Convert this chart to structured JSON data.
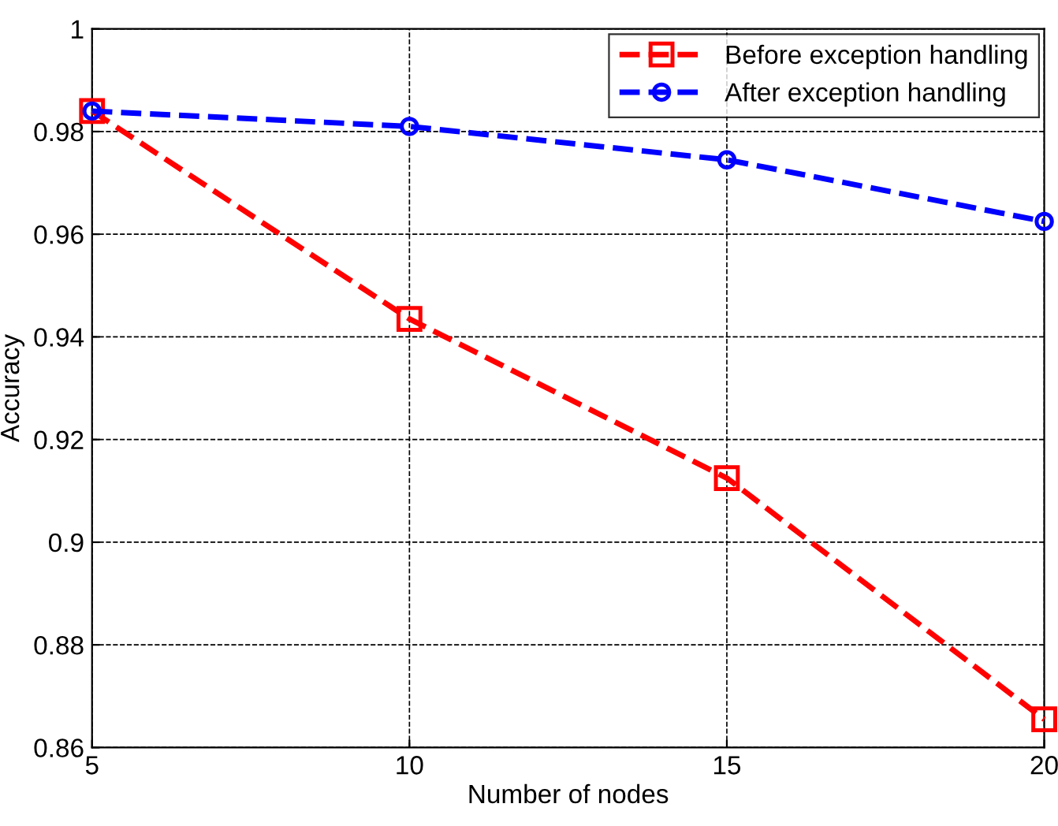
{
  "chart_data": {
    "type": "line",
    "xlabel": "Number of nodes",
    "ylabel": "Accuracy",
    "x": [
      5,
      10,
      15,
      20
    ],
    "series": [
      {
        "name": "Before exception handling",
        "color": "#ff0000",
        "values": [
          0.984,
          0.9435,
          0.9125,
          0.8655
        ],
        "marker": "square"
      },
      {
        "name": "After exception handling",
        "color": "#0000ff",
        "values": [
          0.984,
          0.981,
          0.9745,
          0.9625
        ],
        "marker": "circle"
      }
    ],
    "xlim": [
      5,
      20
    ],
    "xticks": [
      5,
      10,
      15,
      20
    ],
    "ylim": [
      0.86,
      1
    ],
    "yticks": [
      0.86,
      0.88,
      0.9,
      0.92,
      0.94,
      0.96,
      0.98,
      1
    ],
    "grid": true,
    "legend": "top right",
    "line_style": "dashed"
  }
}
